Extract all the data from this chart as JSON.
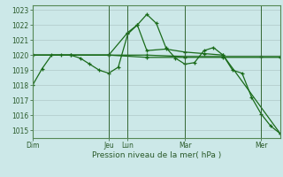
{
  "background_color": "#cce8e8",
  "grid_color": "#b0c8c8",
  "line_color": "#1a6b1a",
  "vline_color": "#336633",
  "title": "Pression niveau de la mer( hPa )",
  "ylim": [
    1014.5,
    1023.3
  ],
  "yticks": [
    1015,
    1016,
    1017,
    1018,
    1019,
    1020,
    1021,
    1022,
    1023
  ],
  "day_labels": [
    "Dim",
    "Jeu",
    "Lun",
    "Mar",
    "Mer"
  ],
  "day_positions": [
    0,
    96,
    120,
    192,
    288
  ],
  "xlim": [
    0,
    312
  ],
  "series": [
    [
      0,
      1018.0,
      12,
      1019.1,
      24,
      1020.0,
      36,
      1020.0,
      48,
      1020.0,
      60,
      1019.8,
      72,
      1019.4,
      84,
      1019.0,
      96,
      1018.8,
      108,
      1019.2,
      120,
      1021.4,
      132,
      1022.0,
      144,
      1022.7,
      156,
      1022.1,
      168,
      1020.5,
      180,
      1019.8,
      192,
      1019.4,
      204,
      1019.5,
      216,
      1020.3,
      228,
      1020.5,
      240,
      1020.0,
      252,
      1019.0,
      264,
      1018.8,
      276,
      1017.2,
      288,
      1016.1,
      300,
      1015.3,
      312,
      1014.8
    ],
    [
      0,
      1020.0,
      48,
      1020.0,
      96,
      1020.0,
      144,
      1020.0,
      192,
      1019.9,
      240,
      1019.9,
      288,
      1019.9,
      312,
      1019.9
    ],
    [
      0,
      1020.0,
      96,
      1020.0,
      144,
      1019.85,
      192,
      1019.85,
      240,
      1019.85,
      312,
      1019.85
    ],
    [
      0,
      1020.0,
      96,
      1020.0,
      120,
      1021.5,
      132,
      1022.0,
      144,
      1020.3,
      168,
      1020.4,
      192,
      1020.2,
      216,
      1020.1,
      240,
      1020.0,
      312,
      1014.8
    ]
  ],
  "tick_fontsize": 5.5,
  "label_fontsize": 6.5,
  "tick_color": "#2a5a2a",
  "linewidth": 0.9,
  "markersize": 3.5
}
